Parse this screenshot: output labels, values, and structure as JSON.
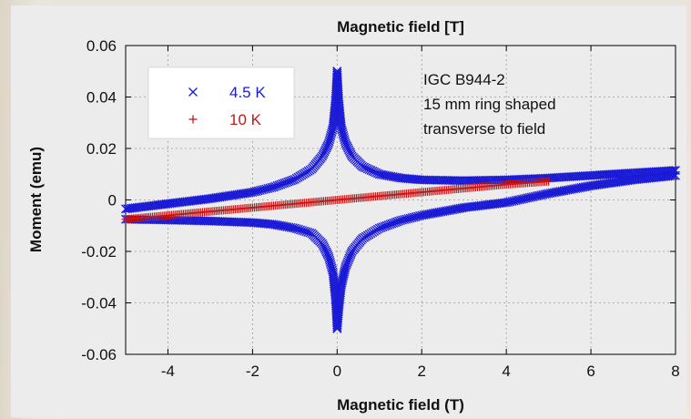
{
  "chart_data": {
    "type": "scatter",
    "title": "Magnetic field [T]",
    "xlabel": "Magnetic field (T)",
    "ylabel": "Moment (emu)",
    "xlim": [
      -5,
      8
    ],
    "ylim": [
      -0.06,
      0.06
    ],
    "x_ticks": [
      "-4",
      "-2",
      "0",
      "2",
      "4",
      "6",
      "8"
    ],
    "y_ticks": [
      "0.06",
      "0.04",
      "0.02",
      "0",
      "-0.02",
      "-0.04",
      "-0.06"
    ],
    "grid": true,
    "legend_position": "top-left",
    "annotation": [
      "IGC B944-2",
      "15 mm ring shaped",
      "transverse to field"
    ],
    "series": [
      {
        "name": "4.5 K",
        "marker": "x",
        "color": "#1a1ad6",
        "branches": [
          {
            "x": [
              -5,
              -4,
              -3,
              -2,
              -1.5,
              -1,
              -0.6,
              -0.35,
              -0.2,
              -0.1,
              -0.04,
              0
            ],
            "y": [
              -0.0035,
              -0.0015,
              0.0005,
              0.003,
              0.005,
              0.008,
              0.012,
              0.017,
              0.022,
              0.028,
              0.038,
              0.05
            ]
          },
          {
            "x": [
              0,
              0.04,
              0.1,
              0.2,
              0.35,
              0.6,
              1,
              1.5,
              2,
              3,
              4,
              5,
              6,
              7,
              8
            ],
            "y": [
              0.05,
              0.038,
              0.028,
              0.022,
              0.017,
              0.013,
              0.01,
              0.0085,
              0.0078,
              0.0075,
              0.0078,
              0.0085,
              0.0095,
              0.0105,
              0.0115
            ]
          },
          {
            "x": [
              8,
              7,
              6,
              5,
              4,
              3,
              2,
              1.5,
              1,
              0.6,
              0.35,
              0.2,
              0.1,
              0.04,
              0
            ],
            "y": [
              0.0095,
              0.0078,
              0.0055,
              0.0025,
              -0.001,
              -0.003,
              -0.006,
              -0.008,
              -0.011,
              -0.015,
              -0.02,
              -0.026,
              -0.033,
              -0.042,
              -0.05
            ]
          },
          {
            "x": [
              0,
              -0.04,
              -0.1,
              -0.2,
              -0.35,
              -0.6,
              -1,
              -1.5,
              -2,
              -3,
              -4,
              -5
            ],
            "y": [
              -0.05,
              -0.038,
              -0.028,
              -0.022,
              -0.017,
              -0.013,
              -0.011,
              -0.0095,
              -0.0088,
              -0.0082,
              -0.0078,
              -0.0075
            ]
          }
        ]
      },
      {
        "name": "10 K",
        "marker": "+",
        "color": "#c41818",
        "branches": [
          {
            "x": [
              -5,
              -4,
              -3,
              -2,
              -1,
              0,
              1,
              2,
              3,
              4,
              5
            ],
            "y": [
              -0.0075,
              -0.006,
              -0.0045,
              -0.003,
              -0.0015,
              0,
              0.0015,
              0.003,
              0.0045,
              0.006,
              0.0072
            ]
          }
        ]
      }
    ]
  }
}
